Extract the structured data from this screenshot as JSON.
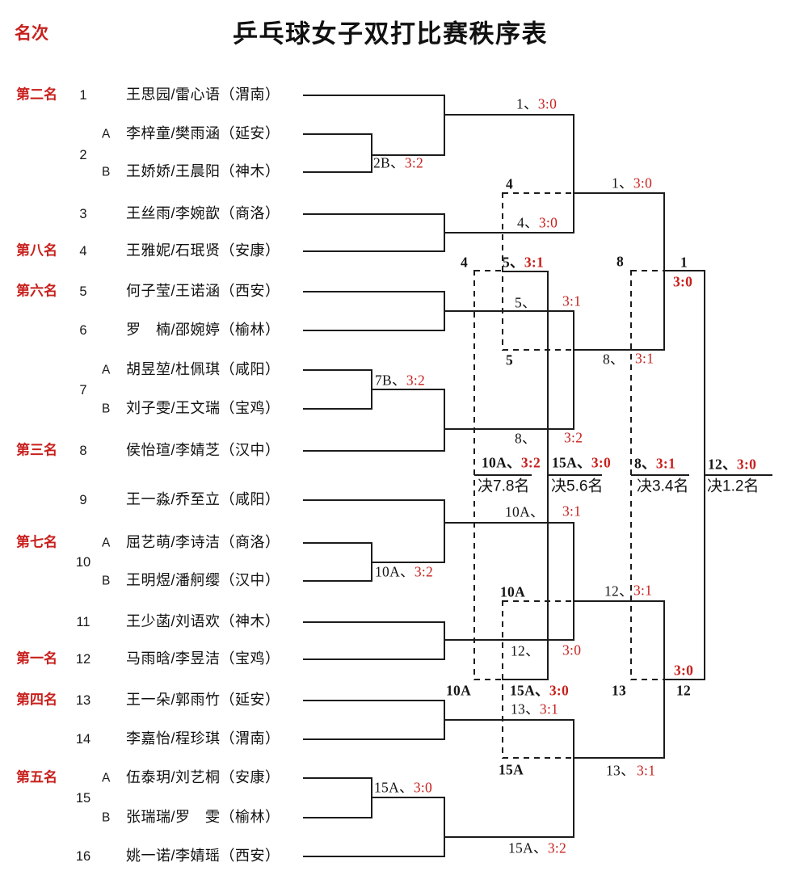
{
  "header": {
    "rank_column": "名次",
    "title": "乒乓球女子双打比赛秩序表"
  },
  "teams": [
    {
      "seed": "1",
      "rank": "第二名",
      "ab": "",
      "name": "王思园/雷心语（渭南）"
    },
    {
      "seed": "2",
      "rank": "",
      "ab": "A",
      "name": "李梓童/樊雨涵（延安）"
    },
    {
      "seed": "",
      "rank": "",
      "ab": "B",
      "name": "王娇娇/王晨阳（神木）"
    },
    {
      "seed": "3",
      "rank": "",
      "ab": "",
      "name": "王丝雨/李婉歆（商洛）"
    },
    {
      "seed": "4",
      "rank": "第八名",
      "ab": "",
      "name": "王雅妮/石珉贤（安康）"
    },
    {
      "seed": "5",
      "rank": "第六名",
      "ab": "",
      "name": "何子莹/王诺涵（西安）"
    },
    {
      "seed": "6",
      "rank": "",
      "ab": "",
      "name": "罗　楠/邵婉婷（榆林）"
    },
    {
      "seed": "7",
      "rank": "",
      "ab": "A",
      "name": "胡昱堃/杜佩琪（咸阳）"
    },
    {
      "seed": "",
      "rank": "",
      "ab": "B",
      "name": "刘子雯/王文瑞（宝鸡）"
    },
    {
      "seed": "8",
      "rank": "第三名",
      "ab": "",
      "name": "侯怡瑄/李婧芝（汉中）"
    },
    {
      "seed": "9",
      "rank": "",
      "ab": "",
      "name": "王一淼/乔至立（咸阳）"
    },
    {
      "seed": "10",
      "rank": "第七名",
      "ab": "A",
      "name": "屈艺萌/李诗洁（商洛）"
    },
    {
      "seed": "",
      "rank": "",
      "ab": "B",
      "name": "王明煜/潘舸缨（汉中）"
    },
    {
      "seed": "11",
      "rank": "",
      "ab": "",
      "name": "王少菡/刘语欢（神木）"
    },
    {
      "seed": "12",
      "rank": "第一名",
      "ab": "",
      "name": "马雨晗/李昱洁（宝鸡）"
    },
    {
      "seed": "13",
      "rank": "第四名",
      "ab": "",
      "name": "王一朵/郭雨竹（延安）"
    },
    {
      "seed": "14",
      "rank": "",
      "ab": "",
      "name": "李嘉怡/程珍琪（渭南）"
    },
    {
      "seed": "15",
      "rank": "第五名",
      "ab": "A",
      "name": "伍泰玥/刘艺桐（安康）"
    },
    {
      "seed": "",
      "rank": "",
      "ab": "B",
      "name": "张瑞瑞/罗　雯（榆林）"
    },
    {
      "seed": "16",
      "rank": "",
      "ab": "",
      "name": "姚一诺/李婧瑶（西安）"
    }
  ],
  "qualifier_results": [
    {
      "winner": "2B、",
      "score": "3:2"
    },
    {
      "winner": "7B、",
      "score": "3:2"
    },
    {
      "winner": "10A、",
      "score": "3:2"
    },
    {
      "winner": "15A、",
      "score": "3:0"
    }
  ],
  "round16_results": [
    {
      "winner": "1、",
      "score": "3:0"
    },
    {
      "winner": "4、",
      "score": "3:0"
    },
    {
      "winner": "5、",
      "score": "3:1"
    },
    {
      "winner": "8、",
      "score": "3:2"
    },
    {
      "winner": "10A、",
      "score": "3:1"
    },
    {
      "winner": "12、",
      "score": "3:0"
    },
    {
      "winner": "13、",
      "score": "3:1"
    },
    {
      "winner": "15A、",
      "score": "3:2"
    }
  ],
  "quarterfinal_results": [
    {
      "winner": "1、",
      "score": "3:0"
    },
    {
      "winner": "8、",
      "score": "3:1"
    },
    {
      "winner": "12、",
      "score": "3:1"
    },
    {
      "winner": "13、",
      "score": "3:1"
    }
  ],
  "semifinal_results": [
    {
      "winner": "1",
      "score": "3:0"
    },
    {
      "winner": "12",
      "score": "3:0"
    }
  ],
  "consolation": {
    "entries": [
      "4",
      "5",
      "10A",
      "15A"
    ],
    "drop_outs": [
      "4",
      "8",
      "10A",
      "13"
    ],
    "results": [
      {
        "winner": "5、",
        "score": "3:1"
      },
      {
        "winner": "15A、",
        "score": "3:0"
      }
    ]
  },
  "placement_finals": [
    {
      "winner": "10A、",
      "score": "3:2",
      "title": "决7.8名"
    },
    {
      "winner": "15A、",
      "score": "3:0",
      "title": "决5.6名"
    },
    {
      "winner": "8、",
      "score": "3:1",
      "title": "决3.4名"
    },
    {
      "winner": "12、",
      "score": "3:0",
      "title": "决1.2名"
    }
  ],
  "colors": {
    "accent_red": "#c8201d",
    "text": "#1a1a1a",
    "line": "#1c1c1c"
  }
}
